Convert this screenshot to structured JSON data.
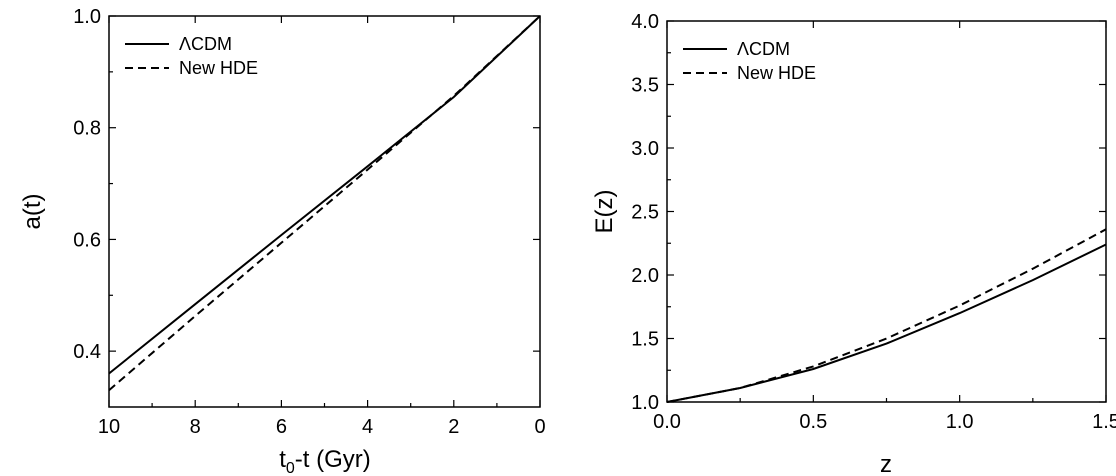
{
  "chart_data": [
    {
      "type": "line",
      "xlabel": "t0-t (Gyr)",
      "xlabel_main": "t",
      "xlabel_sub": "0",
      "xlabel_rest": "-t (Gyr)",
      "ylabel": "a(t)",
      "xlim": [
        10,
        0
      ],
      "ylim": [
        0.3,
        1.0
      ],
      "x_reversed": true,
      "xticks": [
        10,
        8,
        6,
        4,
        2,
        0
      ],
      "xtick_labels": [
        "10",
        "8",
        "6",
        "4",
        "2",
        "0"
      ],
      "yticks": [
        0.4,
        0.6,
        0.8,
        1.0
      ],
      "ytick_labels": [
        "0.4",
        "0.6",
        "0.8",
        "1.0"
      ],
      "legend_position": "top-left",
      "series": [
        {
          "name": "ΛCDM",
          "style": "solid",
          "x": [
            10,
            8,
            6,
            4,
            2,
            0
          ],
          "y": [
            0.36,
            0.484,
            0.608,
            0.731,
            0.855,
            1.0
          ]
        },
        {
          "name": "New HDE",
          "style": "dashed",
          "x": [
            10,
            8,
            6,
            4,
            2,
            0
          ],
          "y": [
            0.33,
            0.463,
            0.594,
            0.725,
            0.857,
            1.0
          ]
        }
      ]
    },
    {
      "type": "line",
      "xlabel": "z",
      "ylabel": "E(z)",
      "xlim": [
        0,
        1.5
      ],
      "ylim": [
        1.0,
        4.0
      ],
      "xticks": [
        0.0,
        0.5,
        1.0,
        1.5
      ],
      "xtick_labels": [
        "0.0",
        "0.5",
        "1.0",
        "1.5"
      ],
      "yticks": [
        1.0,
        1.5,
        2.0,
        2.5,
        3.0,
        3.5,
        4.0
      ],
      "ytick_labels": [
        "1.0",
        "1.5",
        "2.0",
        "2.5",
        "3.0",
        "3.5",
        "4.0"
      ],
      "legend_position": "top-left",
      "series": [
        {
          "name": "ΛCDM",
          "style": "solid",
          "x": [
            0,
            0.25,
            0.5,
            0.75,
            1.0,
            1.25,
            1.5
          ],
          "y": [
            1.0,
            1.11,
            1.26,
            1.46,
            1.7,
            1.96,
            2.24
          ]
        },
        {
          "name": "New HDE",
          "style": "dashed",
          "x": [
            0,
            0.25,
            0.5,
            0.75,
            1.0,
            1.25,
            1.5
          ],
          "y": [
            1.0,
            1.11,
            1.28,
            1.5,
            1.76,
            2.05,
            2.36
          ]
        }
      ]
    }
  ]
}
